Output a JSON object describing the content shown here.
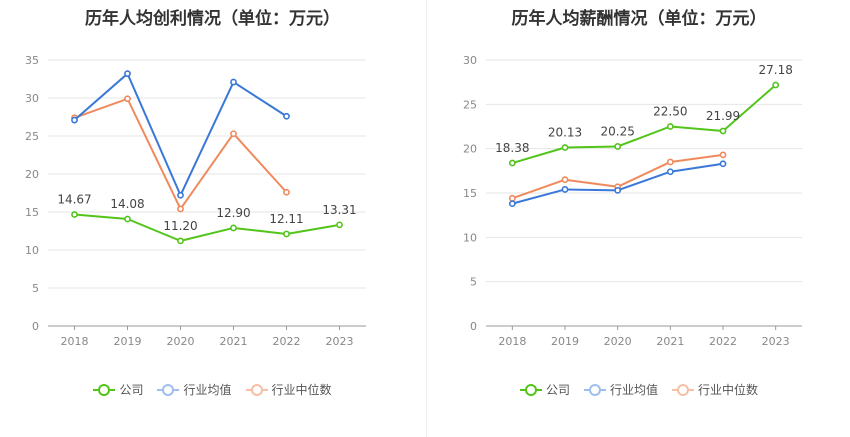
{
  "chart_data": [
    {
      "type": "line",
      "title": "历年人均创利情况（单位：万元）",
      "categories": [
        "2018",
        "2019",
        "2020",
        "2021",
        "2022",
        "2023"
      ],
      "ylim": [
        0,
        35
      ],
      "yticks": [
        0,
        5,
        10,
        15,
        20,
        25,
        30,
        35
      ],
      "grid": true,
      "legend_position": "bottom",
      "series": [
        {
          "name": "公司",
          "color": "#52c41a",
          "values": [
            14.67,
            14.08,
            11.2,
            12.9,
            12.11,
            13.31
          ],
          "labels": [
            "14.67",
            "14.08",
            "11.20",
            "12.90",
            "12.11",
            "13.31"
          ]
        },
        {
          "name": "行业均值",
          "color": "#3a78d8",
          "values": [
            27.1,
            33.2,
            17.2,
            32.1,
            27.6,
            null
          ]
        },
        {
          "name": "行业中位数",
          "color": "#f08a5d",
          "values": [
            27.4,
            29.9,
            15.4,
            25.3,
            17.6,
            null
          ]
        }
      ]
    },
    {
      "type": "line",
      "title": "历年人均薪酬情况（单位：万元）",
      "categories": [
        "2018",
        "2019",
        "2020",
        "2021",
        "2022",
        "2023"
      ],
      "ylim": [
        0,
        30
      ],
      "yticks": [
        0,
        5,
        10,
        15,
        20,
        25,
        30
      ],
      "grid": true,
      "legend_position": "bottom",
      "series": [
        {
          "name": "公司",
          "color": "#52c41a",
          "values": [
            18.38,
            20.13,
            20.25,
            22.5,
            21.99,
            27.18
          ],
          "labels": [
            "18.38",
            "20.13",
            "20.25",
            "22.50",
            "21.99",
            "27.18"
          ]
        },
        {
          "name": "行业均值",
          "color": "#3a78d8",
          "values": [
            13.8,
            15.4,
            15.3,
            17.4,
            18.3,
            null
          ]
        },
        {
          "name": "行业中位数",
          "color": "#f08a5d",
          "values": [
            14.4,
            16.5,
            15.7,
            18.5,
            19.3,
            null
          ]
        }
      ]
    }
  ],
  "legend": {
    "items": [
      {
        "label": "公司",
        "color": "#52c41a"
      },
      {
        "label": "行业均值",
        "color": "#3a78d8"
      },
      {
        "label": "行业中位数",
        "color": "#f08a5d"
      }
    ]
  }
}
